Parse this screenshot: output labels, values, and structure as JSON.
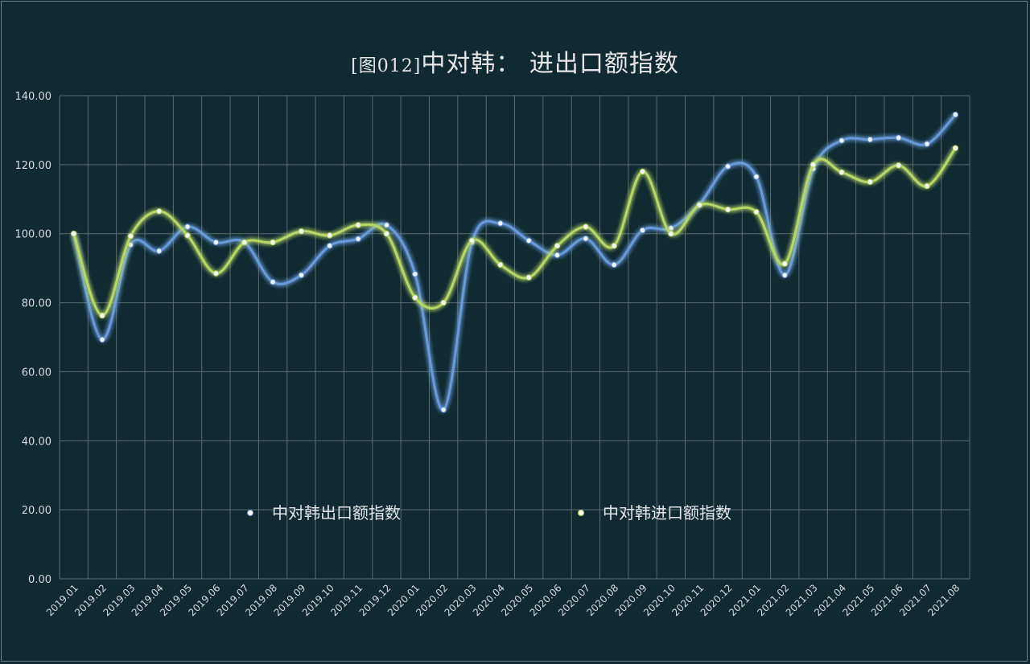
{
  "chart_data": {
    "type": "line",
    "title_tag": "[图012]",
    "title": "中对韩： 进出口额指数",
    "xlabel": "",
    "ylabel": "",
    "ylim": [
      0,
      140
    ],
    "y_ticks": [
      "0.00",
      "20.00",
      "40.00",
      "60.00",
      "80.00",
      "100.00",
      "120.00",
      "140.00"
    ],
    "grid": true,
    "legend_position": "lower-center",
    "categories": [
      "2019.01",
      "2019.02",
      "2019.03",
      "2019.04",
      "2019.05",
      "2019.06",
      "2019.07",
      "2019.08",
      "2019.09",
      "2019.10",
      "2019.11",
      "2019.12",
      "2020.01",
      "2020.02",
      "2020.03",
      "2020.04",
      "2020.05",
      "2020.06",
      "2020.07",
      "2020.08",
      "2020.09",
      "2020.10",
      "2020.11",
      "2020.12",
      "2021.01",
      "2021.02",
      "2021.03",
      "2021.04",
      "2021.05",
      "2021.06",
      "2021.07",
      "2021.08"
    ],
    "series": [
      {
        "name": "中对韩出口额指数",
        "color": "#6a9ad9",
        "values": [
          100.0,
          69.3,
          96.8,
          95.0,
          102.0,
          97.5,
          97.5,
          86.0,
          88.0,
          96.5,
          98.5,
          102.5,
          88.3,
          49.0,
          97.5,
          103.0,
          98.0,
          93.8,
          98.6,
          91.0,
          101.0,
          101.6,
          108.5,
          119.5,
          116.5,
          88.0,
          118.8,
          127.0,
          127.3,
          127.8,
          126.0,
          134.5
        ]
      },
      {
        "name": "中对韩进口额指数",
        "color": "#b5d867",
        "values": [
          100.0,
          76.3,
          99.3,
          106.5,
          99.5,
          88.5,
          97.5,
          97.5,
          100.7,
          99.5,
          102.5,
          100.0,
          81.5,
          80.0,
          98.0,
          91.0,
          87.3,
          96.5,
          102.0,
          96.5,
          118.0,
          100.0,
          108.3,
          107.0,
          106.3,
          91.3,
          120.0,
          117.8,
          115.0,
          119.8,
          113.8,
          124.8
        ]
      }
    ]
  }
}
